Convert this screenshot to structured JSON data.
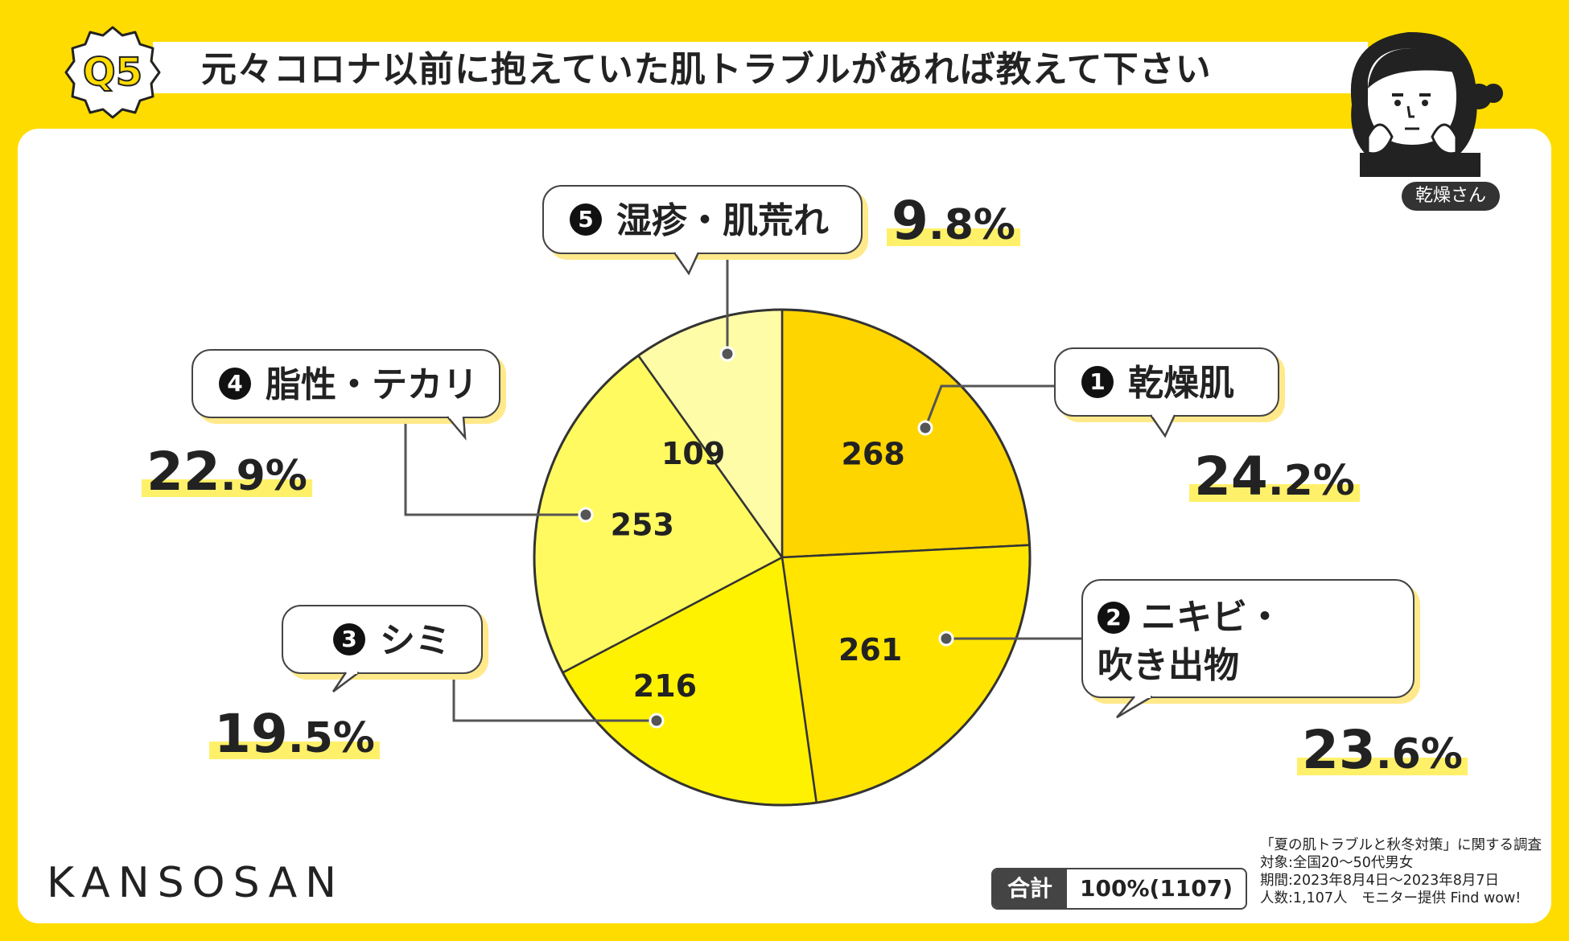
{
  "header": {
    "badge": "Q5",
    "title": "元々コロナ以前に抱えていた肌トラブルがあれば教えて下さい"
  },
  "character": {
    "tag": "乾燥さん"
  },
  "chart_data": {
    "type": "pie",
    "title": "元々コロナ以前に抱えていた肌トラブルがあれば教えて下さい",
    "slices": [
      {
        "index": "1",
        "label": "乾燥肌",
        "label_lines": [
          "乾燥肌"
        ],
        "count": 268,
        "count_label": "268",
        "percent": 24.2,
        "percent_int": "24",
        "percent_dec": ".2%",
        "color": "#FFD500"
      },
      {
        "index": "2",
        "label": "ニキビ・吹き出物",
        "label_lines": [
          "ニキビ・",
          "吹き出物"
        ],
        "count": 261,
        "count_label": "261",
        "percent": 23.6,
        "percent_int": "23",
        "percent_dec": ".6%",
        "color": "#FFE500"
      },
      {
        "index": "3",
        "label": "シミ",
        "label_lines": [
          "シミ"
        ],
        "count": 216,
        "count_label": "216",
        "percent": 19.5,
        "percent_int": "19",
        "percent_dec": ".5%",
        "color": "#FFF200"
      },
      {
        "index": "4",
        "label": "脂性・テカリ",
        "label_lines": [
          "脂性・テカリ"
        ],
        "count": 253,
        "count_label": "253",
        "percent": 22.9,
        "percent_int": "22",
        "percent_dec": ".9%",
        "color": "#FFFA60"
      },
      {
        "index": "5",
        "label": "湿疹・肌荒れ",
        "label_lines": [
          "湿疹・肌荒れ"
        ],
        "count": 109,
        "count_label": "109",
        "percent": 9.8,
        "percent_int": "9",
        "percent_dec": ".8%",
        "color": "#FFFCA8"
      }
    ],
    "total_label": "合計",
    "total_value": "100%(1107)"
  },
  "footer": {
    "brand": "KANSOSAN",
    "notes": [
      "「夏の肌トラブルと秋冬対策」に関する調査",
      "対象:全国20〜50代男女",
      "期間:2023年8月4日〜2023年8月7日",
      "人数:1,107人　モニター提供 Find wow!"
    ]
  }
}
